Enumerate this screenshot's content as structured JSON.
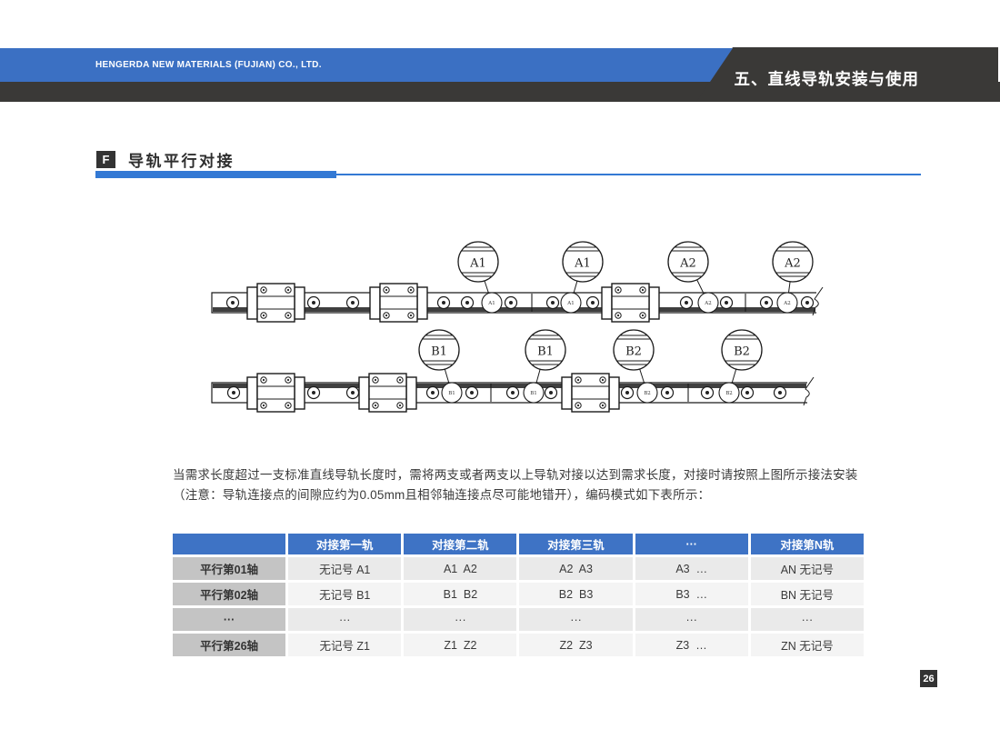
{
  "header": {
    "company": "HENGERDA NEW MATERIALS (FUJIAN) CO., LTD.",
    "section_title": "五、直线导轨安装与使用"
  },
  "heading": {
    "badge": "F",
    "title": "导轨平行对接"
  },
  "diagram": {
    "top_labels": [
      "A1",
      "A1",
      "A2",
      "A2"
    ],
    "bottom_labels": [
      "B1",
      "B1",
      "B2",
      "B2"
    ]
  },
  "paragraph": {
    "line1": "当需求长度超过一支标准直线导轨长度时，需将两支或者两支以上导轨对接以达到需求长度，对接时请按照上图所示接法安装",
    "line2": "（注意：导轨连接点的间隙应约为0.05mm且相邻轴连接点尽可能地错开），编码模式如下表所示："
  },
  "table": {
    "headers": [
      "",
      "对接第一轨",
      "对接第二轨",
      "对接第三轨",
      "···",
      "对接第N轨"
    ],
    "rows": [
      {
        "label": "平行第01轴",
        "cells": [
          "无记号 A1",
          "A1  A2",
          "A2  A3",
          "A3  …",
          "AN 无记号"
        ]
      },
      {
        "label": "平行第02轴",
        "cells": [
          "无记号 B1",
          "B1  B2",
          "B2  B3",
          "B3  …",
          "BN 无记号"
        ]
      },
      {
        "label": "···",
        "cells": [
          "···",
          "···",
          "···",
          "···",
          "···"
        ]
      },
      {
        "label": "平行第26轴",
        "cells": [
          "无记号 Z1",
          "Z1  Z2",
          "Z2  Z3",
          "Z3  …",
          "ZN 无记号"
        ]
      }
    ]
  },
  "page_number": "26",
  "colors": {
    "header_blue": "#3b70c3",
    "rule_blue": "#3379d4",
    "header_dark": "#3a3937",
    "table_header_blue": "#3e73c5",
    "row_label_gray": "#c4c4c4",
    "stroke_dark": "#1b1b1b"
  }
}
